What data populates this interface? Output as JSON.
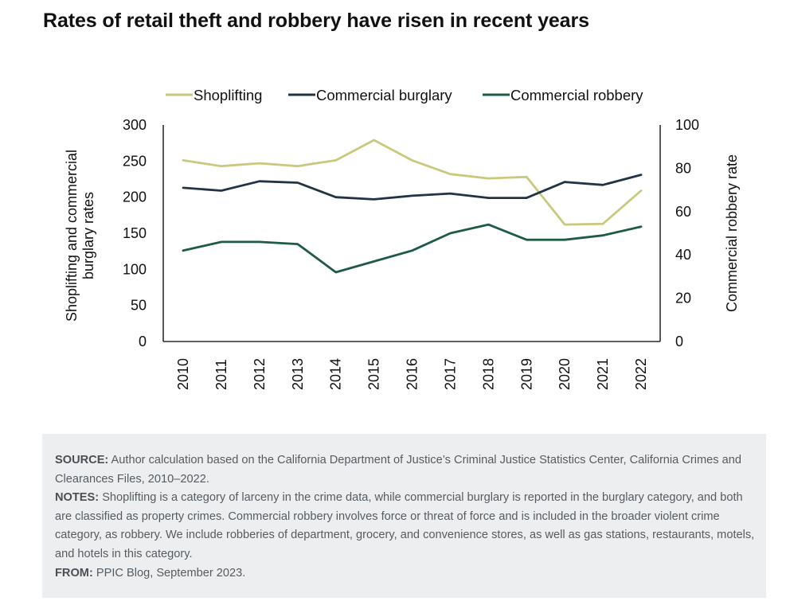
{
  "title": "Rates of retail theft and robbery have risen in recent years",
  "chart_data": {
    "type": "line",
    "x": [
      "2010",
      "2011",
      "2012",
      "2013",
      "2014",
      "2015",
      "2016",
      "2017",
      "2018",
      "2019",
      "2020",
      "2021",
      "2022"
    ],
    "series": [
      {
        "name": "Shoplifting",
        "axis": "left",
        "color": "#c9c97e",
        "values": [
          251,
          243,
          247,
          243,
          251,
          279,
          251,
          232,
          226,
          228,
          162,
          163,
          209
        ]
      },
      {
        "name": "Commercial burglary",
        "axis": "left",
        "color": "#233346",
        "values": [
          213,
          209,
          222,
          220,
          200,
          197,
          202,
          205,
          199,
          199,
          221,
          217,
          231
        ]
      },
      {
        "name": "Commercial robbery",
        "axis": "right",
        "color": "#1d5c42",
        "values": [
          42,
          46,
          46,
          45,
          32,
          37,
          42,
          50,
          54,
          47,
          47,
          49,
          53
        ]
      }
    ],
    "y_left": {
      "label_lines": [
        "Shoplifting and commercial",
        "burglary rates"
      ],
      "ylim": [
        0,
        300
      ],
      "ticks": [
        "0",
        "50",
        "100",
        "150",
        "200",
        "250",
        "300"
      ]
    },
    "y_right": {
      "label": "Commercial robbery rate",
      "ylim": [
        0,
        100
      ],
      "ticks": [
        "0",
        "20",
        "40",
        "60",
        "80",
        "100"
      ]
    },
    "grid": false,
    "legend": "top-center"
  },
  "notes": {
    "source_label": "SOURCE:",
    "source_text": "Author calculation based on the California Department of Justice’s Criminal Justice Statistics Center, California Crimes and Clearances Files, 2010–2022.",
    "notes_label": "NOTES:",
    "notes_text": "Shoplifting is a category of larceny in the crime data, while commercial burglary is reported in the burglary category, and both are classified as property crimes. Commercial robbery involves force or threat of force and is included in the broader violent crime category, as robbery. We include robberies of department, grocery, and convenience stores, as well as gas stations, restaurants, motels, and hotels in this category.",
    "from_label": "FROM:",
    "from_text": "PPIC Blog, September 2023."
  }
}
